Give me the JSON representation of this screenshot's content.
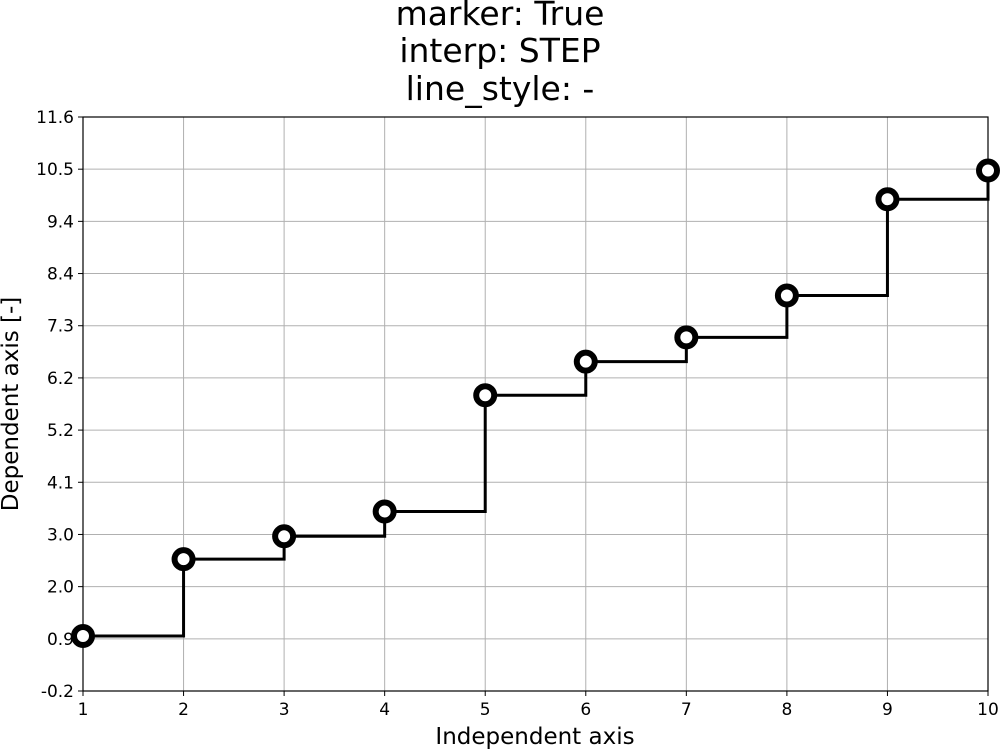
{
  "chart_data": {
    "type": "line",
    "title_lines": [
      "marker: True",
      "interp: STEP",
      "line_style: -"
    ],
    "xlabel": "Independent axis",
    "ylabel": "Dependent axis [-]",
    "xlim": [
      1,
      10
    ],
    "ylim": [
      -0.2,
      11.6
    ],
    "x_ticks": [
      "1",
      "2",
      "3",
      "4",
      "5",
      "6",
      "7",
      "8",
      "9",
      "10"
    ],
    "y_ticks": [
      "-0.2",
      "0.9",
      "2.0",
      "3.0",
      "4.1",
      "5.2",
      "6.2",
      "7.3",
      "8.4",
      "9.4",
      "10.5",
      "11.6"
    ],
    "grid": true,
    "interpolation": "step",
    "marker": "circle",
    "line_style": "solid",
    "series": [
      {
        "x": [
          1,
          2,
          3,
          4,
          5,
          6,
          7,
          8,
          9,
          10
        ],
        "values": [
          0.93,
          2.51,
          2.98,
          3.49,
          5.88,
          6.57,
          7.07,
          7.93,
          9.91,
          10.5
        ]
      }
    ],
    "colors": {
      "line": "#000000",
      "marker_fill": "#ffffff",
      "grid": "#b0b0b0"
    }
  }
}
